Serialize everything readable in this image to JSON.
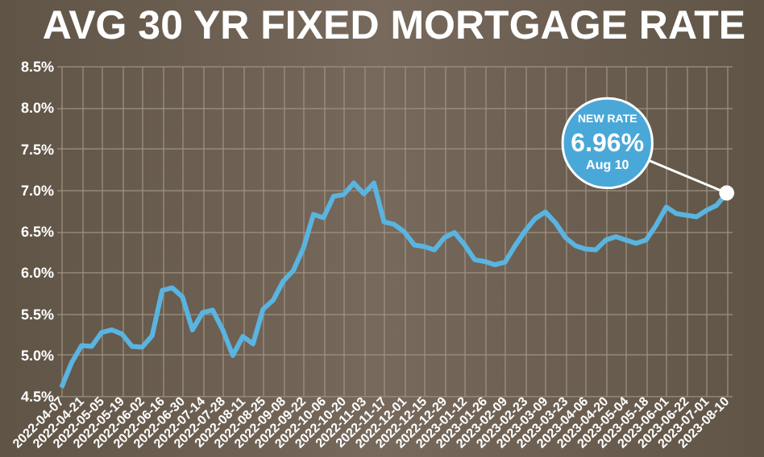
{
  "chart_data": {
    "type": "line",
    "title": "AVG 30 YR FIXED MORTGAGE RATE",
    "categories": [
      "2022-04-07",
      null,
      "2022-04-21",
      null,
      "2022-05-05",
      null,
      "2022-05-19",
      null,
      "2022-06-02",
      null,
      "2022-06-16",
      null,
      "2022-06-30",
      null,
      "2022-07-14",
      null,
      "2022-07-28",
      null,
      "2022-08-11",
      null,
      "2022-08-25",
      null,
      "2022-09-08",
      null,
      "2022-09-22",
      null,
      "2022-10-06",
      null,
      "2022-10-20",
      null,
      "2022-11-03",
      null,
      "2022-11-17",
      null,
      "2022-12-01",
      null,
      "2022-12-15",
      null,
      "2022-12-29",
      null,
      "2023-01-12",
      null,
      "2023-01-26",
      null,
      "2023-02-09",
      null,
      "2023-02-23",
      null,
      "2023-03-09",
      null,
      "2023-03-23",
      null,
      "2023-04-06",
      null,
      "2023-04-20",
      null,
      "2023-05-04",
      null,
      "2023-05-18",
      null,
      "2023-06-01",
      null,
      "2023-06-22",
      null,
      "2023-07-01",
      null,
      "2023-08-10"
    ],
    "series": [
      {
        "color": "#5ab4e0",
        "values": [
          4.6,
          4.9,
          5.11,
          5.1,
          5.27,
          5.3,
          5.25,
          5.1,
          5.09,
          5.23,
          5.78,
          5.81,
          5.7,
          5.3,
          5.51,
          5.54,
          5.3,
          4.99,
          5.22,
          5.13,
          5.55,
          5.66,
          5.89,
          6.02,
          6.29,
          6.7,
          6.66,
          6.92,
          6.94,
          7.08,
          6.95,
          7.08,
          6.61,
          6.58,
          6.49,
          6.33,
          6.31,
          6.27,
          6.42,
          6.48,
          6.33,
          6.15,
          6.13,
          6.09,
          6.12,
          6.32,
          6.5,
          6.65,
          6.73,
          6.6,
          6.42,
          6.32,
          6.28,
          6.27,
          6.39,
          6.43,
          6.39,
          6.35,
          6.39,
          6.57,
          6.79,
          6.71,
          6.69,
          6.67,
          6.75,
          6.81,
          6.96
        ]
      }
    ],
    "ylim": [
      4.5,
      8.5
    ],
    "yticks": [
      {
        "value": 4.5,
        "label": "4.5%"
      },
      {
        "value": 5,
        "label": "5.0%"
      },
      {
        "value": 5.5,
        "label": "5.5%"
      },
      {
        "value": 6,
        "label": "6.0%"
      },
      {
        "value": 6.5,
        "label": "6.5%"
      },
      {
        "value": 7,
        "label": "7.0%"
      },
      {
        "value": 7.5,
        "label": "7.5%"
      },
      {
        "value": 8,
        "label": "8.0%"
      },
      {
        "value": 8.5,
        "label": "8.5%"
      }
    ],
    "grid": true,
    "annotations": [
      "NEW RATE",
      {
        "text": "6.96%",
        "x": "2023-08-10",
        "y": 6.96
      },
      "Aug 10"
    ]
  }
}
